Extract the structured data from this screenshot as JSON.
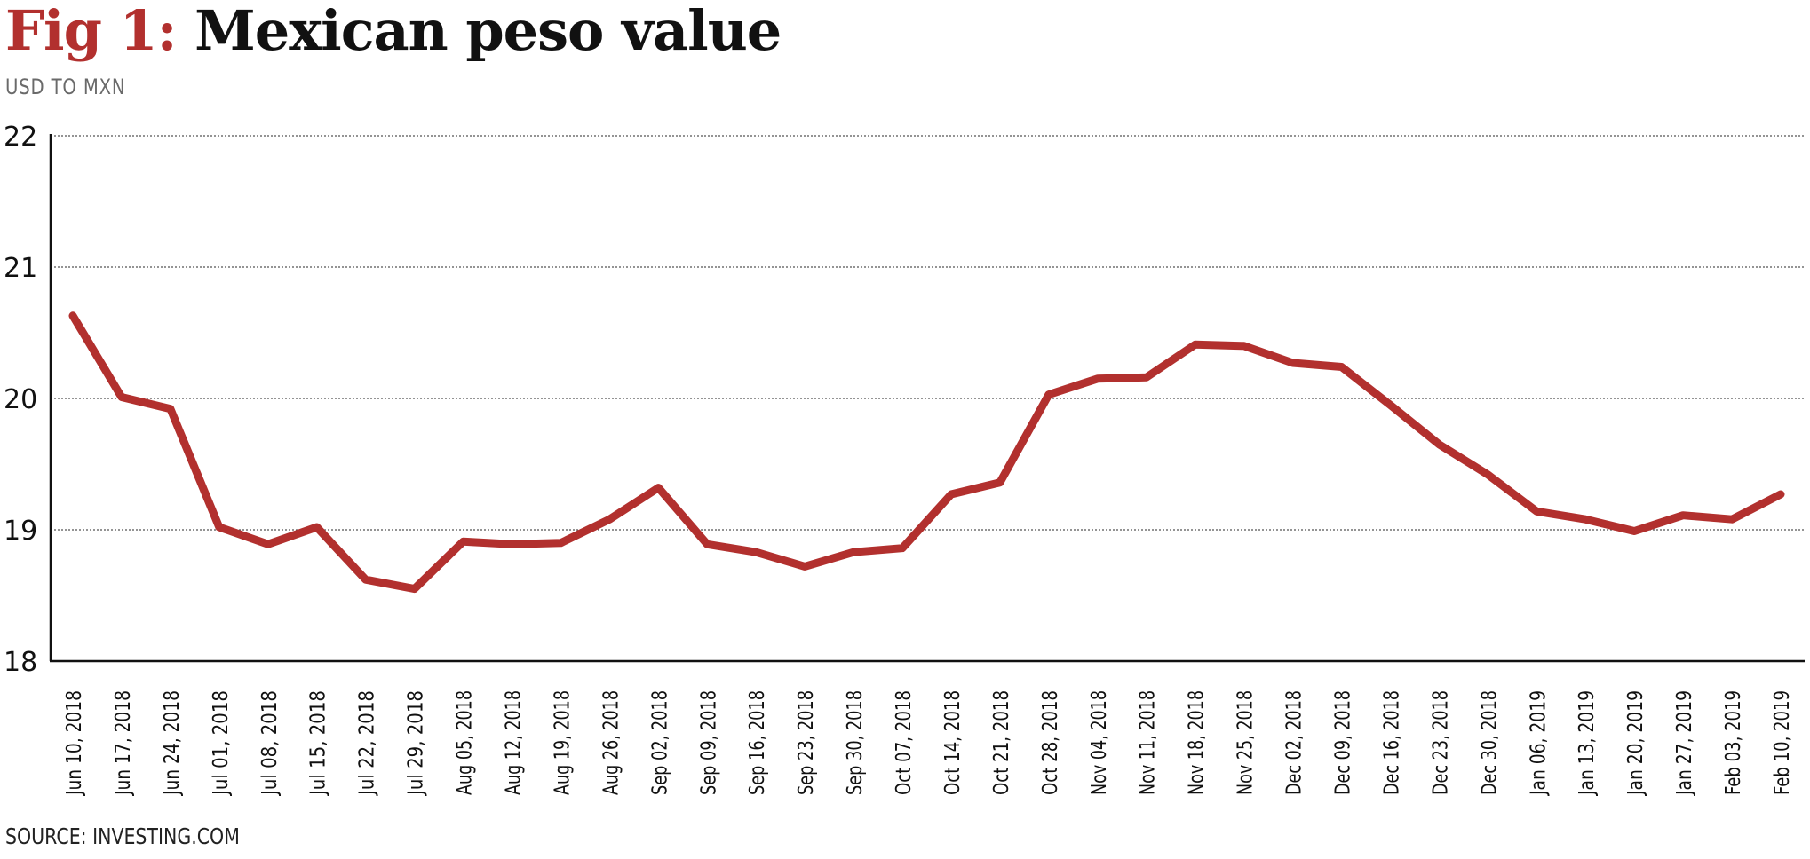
{
  "header": {
    "title_prefix": "Fig 1:",
    "title_main": "Mexican peso value",
    "subtitle": "USD TO MXN"
  },
  "footer": {
    "source": "SOURCE: INVESTING.COM"
  },
  "colors": {
    "line": "#b2302e",
    "grid": "#555555",
    "axis": "#111111"
  },
  "chart_data": {
    "type": "line",
    "title": "Mexican peso value",
    "subtitle": "USD TO MXN",
    "xlabel": "",
    "ylabel": "USD TO MXN",
    "ylim": [
      18,
      22
    ],
    "yticks": [
      18,
      19,
      20,
      21,
      22
    ],
    "grid": "horizontal dotted",
    "categories": [
      "Jun 10, 2018",
      "Jun 17, 2018",
      "Jun 24, 2018",
      "Jul 01, 2018",
      "Jul 08, 2018",
      "Jul 15, 2018",
      "Jul 22, 2018",
      "Jul 29, 2018",
      "Aug 05, 2018",
      "Aug 12, 2018",
      "Aug 19, 2018",
      "Aug 26, 2018",
      "Sep 02, 2018",
      "Sep 09, 2018",
      "Sep 16, 2018",
      "Sep 23, 2018",
      "Sep 30, 2018",
      "Oct 07, 2018",
      "Oct 14, 2018",
      "Oct 21, 2018",
      "Oct 28, 2018",
      "Nov 04, 2018",
      "Nov 11, 2018",
      "Nov 18, 2018",
      "Nov 25, 2018",
      "Dec 02, 2018",
      "Dec 09, 2018",
      "Dec 16, 2018",
      "Dec 23, 2018",
      "Dec 30, 2018",
      "Jan 06, 2019",
      "Jan 13, 2019",
      "Jan 20, 2019",
      "Jan 27, 2019",
      "Feb 03, 2019",
      "Feb 10, 2019"
    ],
    "series": [
      {
        "name": "USD to MXN",
        "values": [
          20.63,
          20.01,
          19.92,
          19.02,
          18.89,
          19.02,
          18.62,
          18.55,
          18.91,
          18.89,
          18.9,
          19.08,
          19.32,
          18.89,
          18.83,
          18.72,
          18.83,
          18.86,
          19.27,
          19.36,
          20.03,
          20.15,
          20.16,
          20.41,
          20.4,
          20.27,
          20.24,
          19.95,
          19.65,
          19.42,
          19.14,
          19.08,
          18.99,
          19.11,
          19.08,
          19.27
        ]
      }
    ]
  }
}
